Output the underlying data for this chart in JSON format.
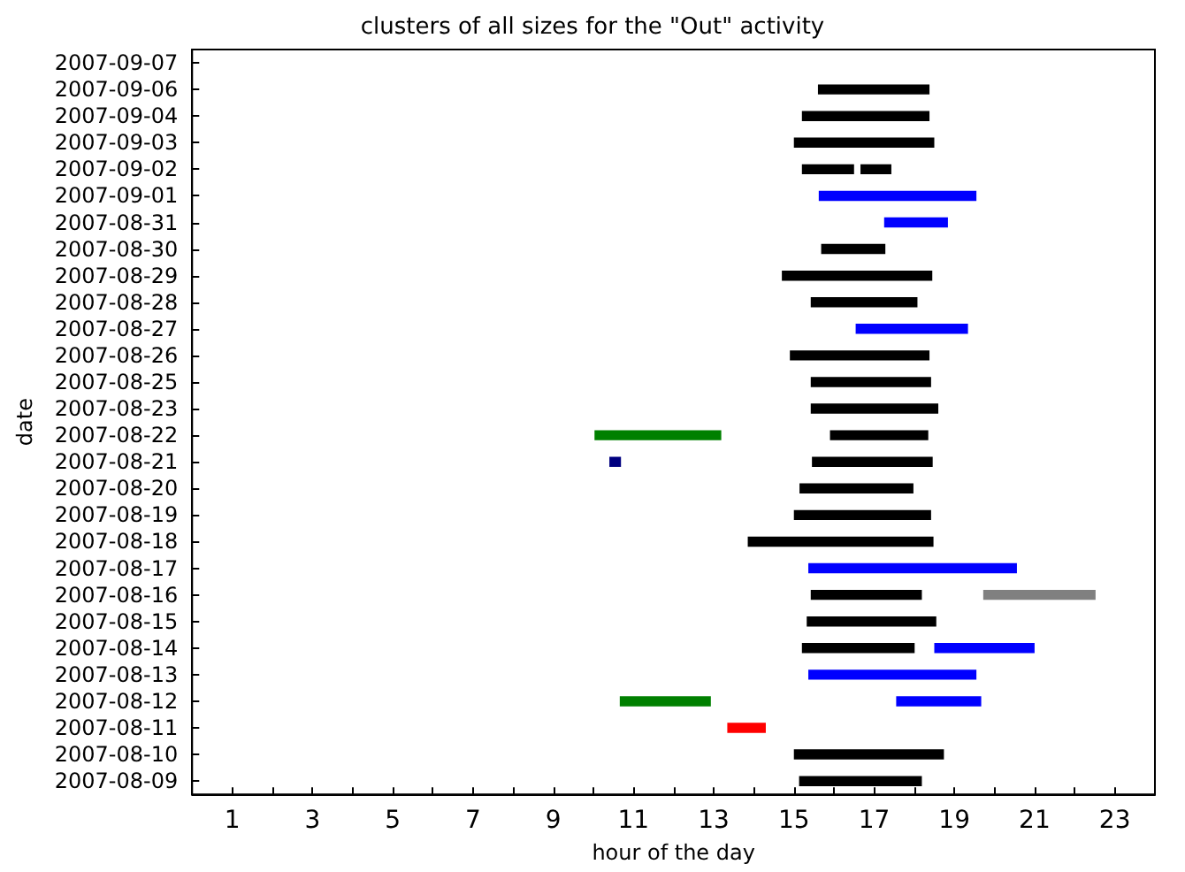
{
  "chart_data": {
    "type": "bar",
    "orientation": "horizontal",
    "title": "clusters of all sizes for the \"Out\" activity",
    "xlabel": "hour of the day",
    "ylabel": "date",
    "categories": [
      "2007-09-07",
      "2007-09-06",
      "2007-09-04",
      "2007-09-03",
      "2007-09-02",
      "2007-09-01",
      "2007-08-31",
      "2007-08-30",
      "2007-08-29",
      "2007-08-28",
      "2007-08-27",
      "2007-08-26",
      "2007-08-25",
      "2007-08-23",
      "2007-08-22",
      "2007-08-21",
      "2007-08-20",
      "2007-08-19",
      "2007-08-18",
      "2007-08-17",
      "2007-08-16",
      "2007-08-15",
      "2007-08-14",
      "2007-08-13",
      "2007-08-12",
      "2007-08-11",
      "2007-08-10",
      "2007-08-09"
    ],
    "series": [
      {
        "color": "#000000",
        "base": [
          null,
          15.6,
          15.2,
          15.0,
          15.2,
          null,
          null,
          15.68,
          14.7,
          15.42,
          null,
          14.9,
          15.42,
          15.42,
          15.9,
          15.45,
          15.14,
          15.0,
          13.85,
          null,
          15.42,
          15.32,
          15.2,
          null,
          null,
          null,
          15.0,
          15.13
        ],
        "values": [
          null,
          2.78,
          3.18,
          3.5,
          1.3,
          null,
          null,
          1.6,
          3.75,
          2.66,
          null,
          3.48,
          3.0,
          3.18,
          2.45,
          3.01,
          2.84,
          3.42,
          4.63,
          null,
          2.77,
          3.23,
          2.81,
          null,
          null,
          null,
          3.74,
          3.06
        ]
      },
      {
        "color": "#000000",
        "base": [
          null,
          null,
          null,
          null,
          16.66,
          null,
          null,
          null,
          null,
          null,
          null,
          null,
          null,
          null,
          null,
          null,
          null,
          null,
          null,
          null,
          null,
          null,
          null,
          null,
          null,
          null,
          null,
          null
        ],
        "values": [
          null,
          null,
          null,
          null,
          0.77,
          null,
          null,
          null,
          null,
          null,
          null,
          null,
          null,
          null,
          null,
          null,
          null,
          null,
          null,
          null,
          null,
          null,
          null,
          null,
          null,
          null,
          null,
          null
        ]
      },
      {
        "color": "#0000ff",
        "base": [
          null,
          null,
          null,
          null,
          null,
          15.62,
          17.25,
          null,
          null,
          null,
          16.54,
          null,
          null,
          null,
          null,
          null,
          null,
          null,
          null,
          15.36,
          null,
          null,
          18.5,
          15.36,
          17.55,
          null,
          null,
          null
        ],
        "values": [
          null,
          null,
          null,
          null,
          null,
          3.93,
          1.59,
          null,
          null,
          null,
          2.8,
          null,
          null,
          null,
          null,
          null,
          null,
          null,
          null,
          5.2,
          null,
          null,
          2.5,
          4.19,
          2.12,
          null,
          null,
          null
        ]
      },
      {
        "color": "#008000",
        "base": [
          null,
          null,
          null,
          null,
          null,
          null,
          null,
          null,
          null,
          null,
          null,
          null,
          null,
          null,
          10.03,
          null,
          null,
          null,
          null,
          null,
          null,
          null,
          null,
          null,
          10.66,
          null,
          null,
          null
        ],
        "values": [
          null,
          null,
          null,
          null,
          null,
          null,
          null,
          null,
          null,
          null,
          null,
          null,
          null,
          null,
          3.16,
          null,
          null,
          null,
          null,
          null,
          null,
          null,
          null,
          null,
          2.27,
          null,
          null,
          null
        ]
      },
      {
        "color": "#000080",
        "base": [
          null,
          null,
          null,
          null,
          null,
          null,
          null,
          null,
          null,
          null,
          null,
          null,
          null,
          null,
          null,
          10.4,
          null,
          null,
          null,
          null,
          null,
          null,
          null,
          null,
          null,
          null,
          null,
          null
        ],
        "values": [
          null,
          null,
          null,
          null,
          null,
          null,
          null,
          null,
          null,
          null,
          null,
          null,
          null,
          null,
          null,
          0.29,
          null,
          null,
          null,
          null,
          null,
          null,
          null,
          null,
          null,
          null,
          null,
          null
        ]
      },
      {
        "color": "#ff0000",
        "base": [
          null,
          null,
          null,
          null,
          null,
          null,
          null,
          null,
          null,
          null,
          null,
          null,
          null,
          null,
          null,
          null,
          null,
          null,
          null,
          null,
          null,
          null,
          null,
          null,
          null,
          13.34,
          null,
          null
        ],
        "values": [
          null,
          null,
          null,
          null,
          null,
          null,
          null,
          null,
          null,
          null,
          null,
          null,
          null,
          null,
          null,
          null,
          null,
          null,
          null,
          null,
          null,
          null,
          null,
          null,
          null,
          0.96,
          null,
          null
        ]
      },
      {
        "color": "#808080",
        "base": [
          null,
          null,
          null,
          null,
          null,
          null,
          null,
          null,
          null,
          null,
          null,
          null,
          null,
          null,
          null,
          null,
          null,
          null,
          null,
          null,
          19.72,
          null,
          null,
          null,
          null,
          null,
          null,
          null
        ],
        "values": [
          null,
          null,
          null,
          null,
          null,
          null,
          null,
          null,
          null,
          null,
          null,
          null,
          null,
          null,
          null,
          null,
          null,
          null,
          null,
          null,
          2.8,
          null,
          null,
          null,
          null,
          null,
          null,
          null
        ]
      }
    ],
    "xlim": [
      0,
      24
    ],
    "xticks": [
      1,
      {
        "value": 2,
        "label": null
      },
      3,
      {
        "value": 4,
        "label": null
      },
      5,
      {
        "value": 6,
        "label": null
      },
      7,
      {
        "value": 8,
        "label": null
      },
      9,
      {
        "value": 10,
        "label": null
      },
      11,
      {
        "value": 12,
        "label": null
      },
      13,
      {
        "value": 14,
        "label": null
      },
      15,
      {
        "value": 16,
        "label": null
      },
      17,
      {
        "value": 18,
        "label": null
      },
      19,
      {
        "value": 20,
        "label": null
      },
      21,
      {
        "value": 22,
        "label": null
      },
      23
    ],
    "grid": false
  }
}
